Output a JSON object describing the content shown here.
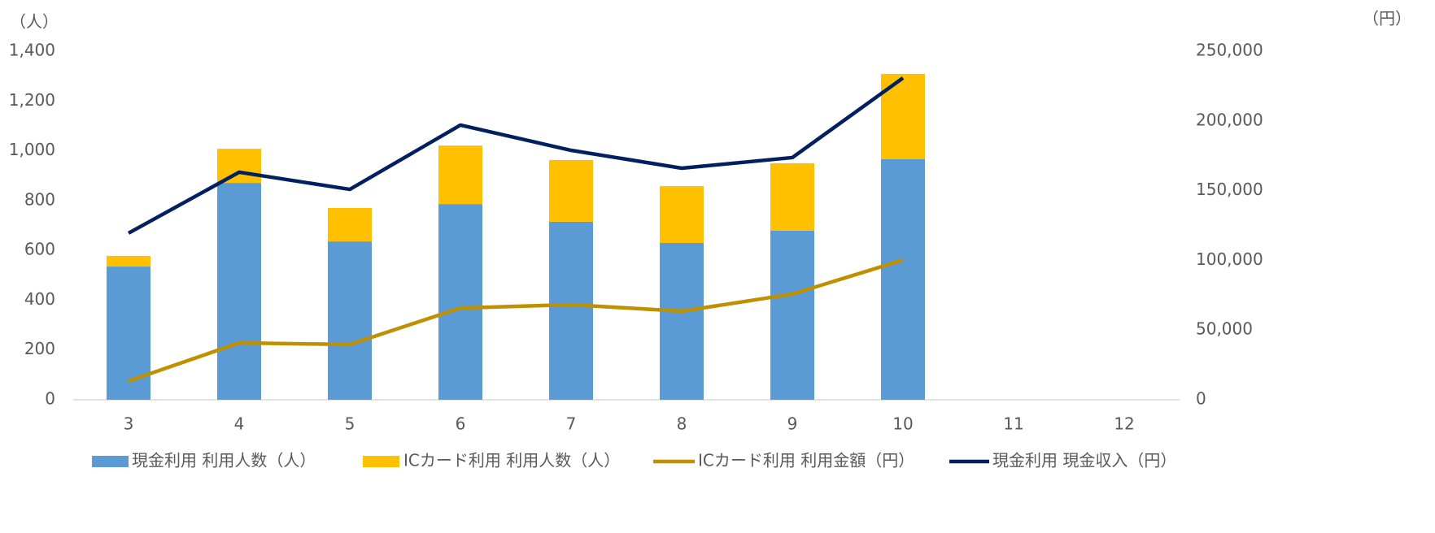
{
  "chart_data": {
    "type": "bar",
    "y_label": "（人）",
    "y2_label": "（円）",
    "categories": [
      "3",
      "4",
      "5",
      "6",
      "7",
      "8",
      "9",
      "10",
      "11",
      "12"
    ],
    "series": [
      {
        "name": "現金利用 利用人数（人）",
        "type": "bar",
        "color": "#5b9bd5",
        "values": [
          535,
          871,
          636,
          786,
          715,
          630,
          679,
          966,
          null,
          null
        ]
      },
      {
        "name": "ICカード利用 利用人数（人）",
        "type": "bar",
        "color": "#ffc000",
        "values": [
          43,
          137,
          134,
          235,
          248,
          228,
          271,
          343,
          null,
          null
        ]
      },
      {
        "name": "ICカード利用 利用金額（円）",
        "type": "line",
        "axis": "y2",
        "color": "#bf9000",
        "values": [
          13400,
          40800,
          39600,
          65800,
          68200,
          63500,
          75800,
          100200,
          null,
          null
        ]
      },
      {
        "name": "現金利用 現金収入（円）",
        "type": "line",
        "axis": "y2",
        "color": "#002060",
        "values": [
          119500,
          163200,
          150900,
          197000,
          178900,
          166100,
          173700,
          230800,
          null,
          null
        ]
      }
    ],
    "ylim": [
      0,
      1400
    ],
    "yticks": [
      0,
      200,
      400,
      600,
      800,
      {
        "value": 1000,
        "label": "1,000"
      },
      {
        "value": 1200,
        "label": "1,200"
      },
      {
        "value": 1400,
        "label": "1,400"
      }
    ],
    "y2lim": [
      0,
      250000
    ],
    "y2ticks": [
      0,
      {
        "value": 50000,
        "label": "50,000"
      },
      {
        "value": 100000,
        "label": "100,000"
      },
      {
        "value": 150000,
        "label": "150,000"
      },
      {
        "value": 200000,
        "label": "200,000"
      },
      {
        "value": 250000,
        "label": "250,000"
      }
    ],
    "stacked": true
  }
}
